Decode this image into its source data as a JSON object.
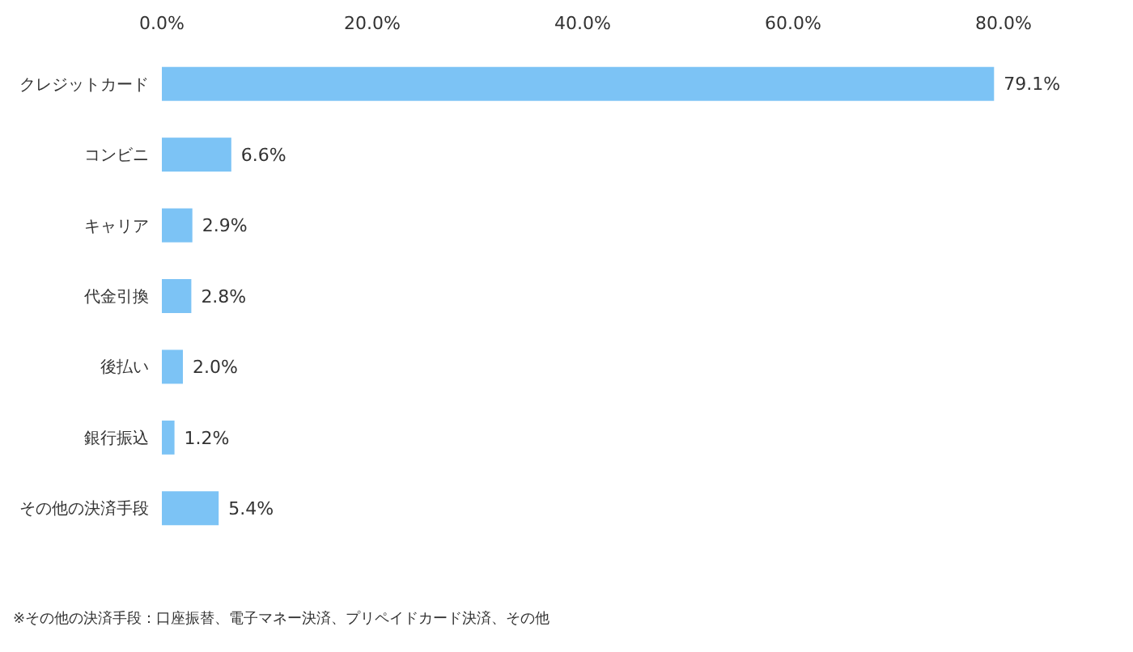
{
  "chart_data": {
    "type": "bar",
    "orientation": "horizontal",
    "categories": [
      "クレジットカード",
      "コンビニ",
      "キャリア",
      "代金引換",
      "後払い",
      "銀行振込",
      "その他の決済手段"
    ],
    "values": [
      79.1,
      6.6,
      2.9,
      2.8,
      2.0,
      1.2,
      5.4
    ],
    "value_labels": [
      "79.1%",
      "6.6%",
      "2.9%",
      "2.8%",
      "2.0%",
      "1.2%",
      "5.4%"
    ],
    "color": "#7cc3f5",
    "xlim": [
      0,
      80
    ],
    "xticks": [
      {
        "value": 0,
        "label": "0.0%"
      },
      {
        "value": 20,
        "label": "20.0%"
      },
      {
        "value": 40,
        "label": "40.0%"
      },
      {
        "value": 60,
        "label": "60.0%"
      },
      {
        "value": 80,
        "label": "80.0%"
      }
    ],
    "grid": false,
    "annotations": [
      "※その他の決済手段：口座振替、電子マネー決済、プリペイドカード決済、その他"
    ]
  }
}
